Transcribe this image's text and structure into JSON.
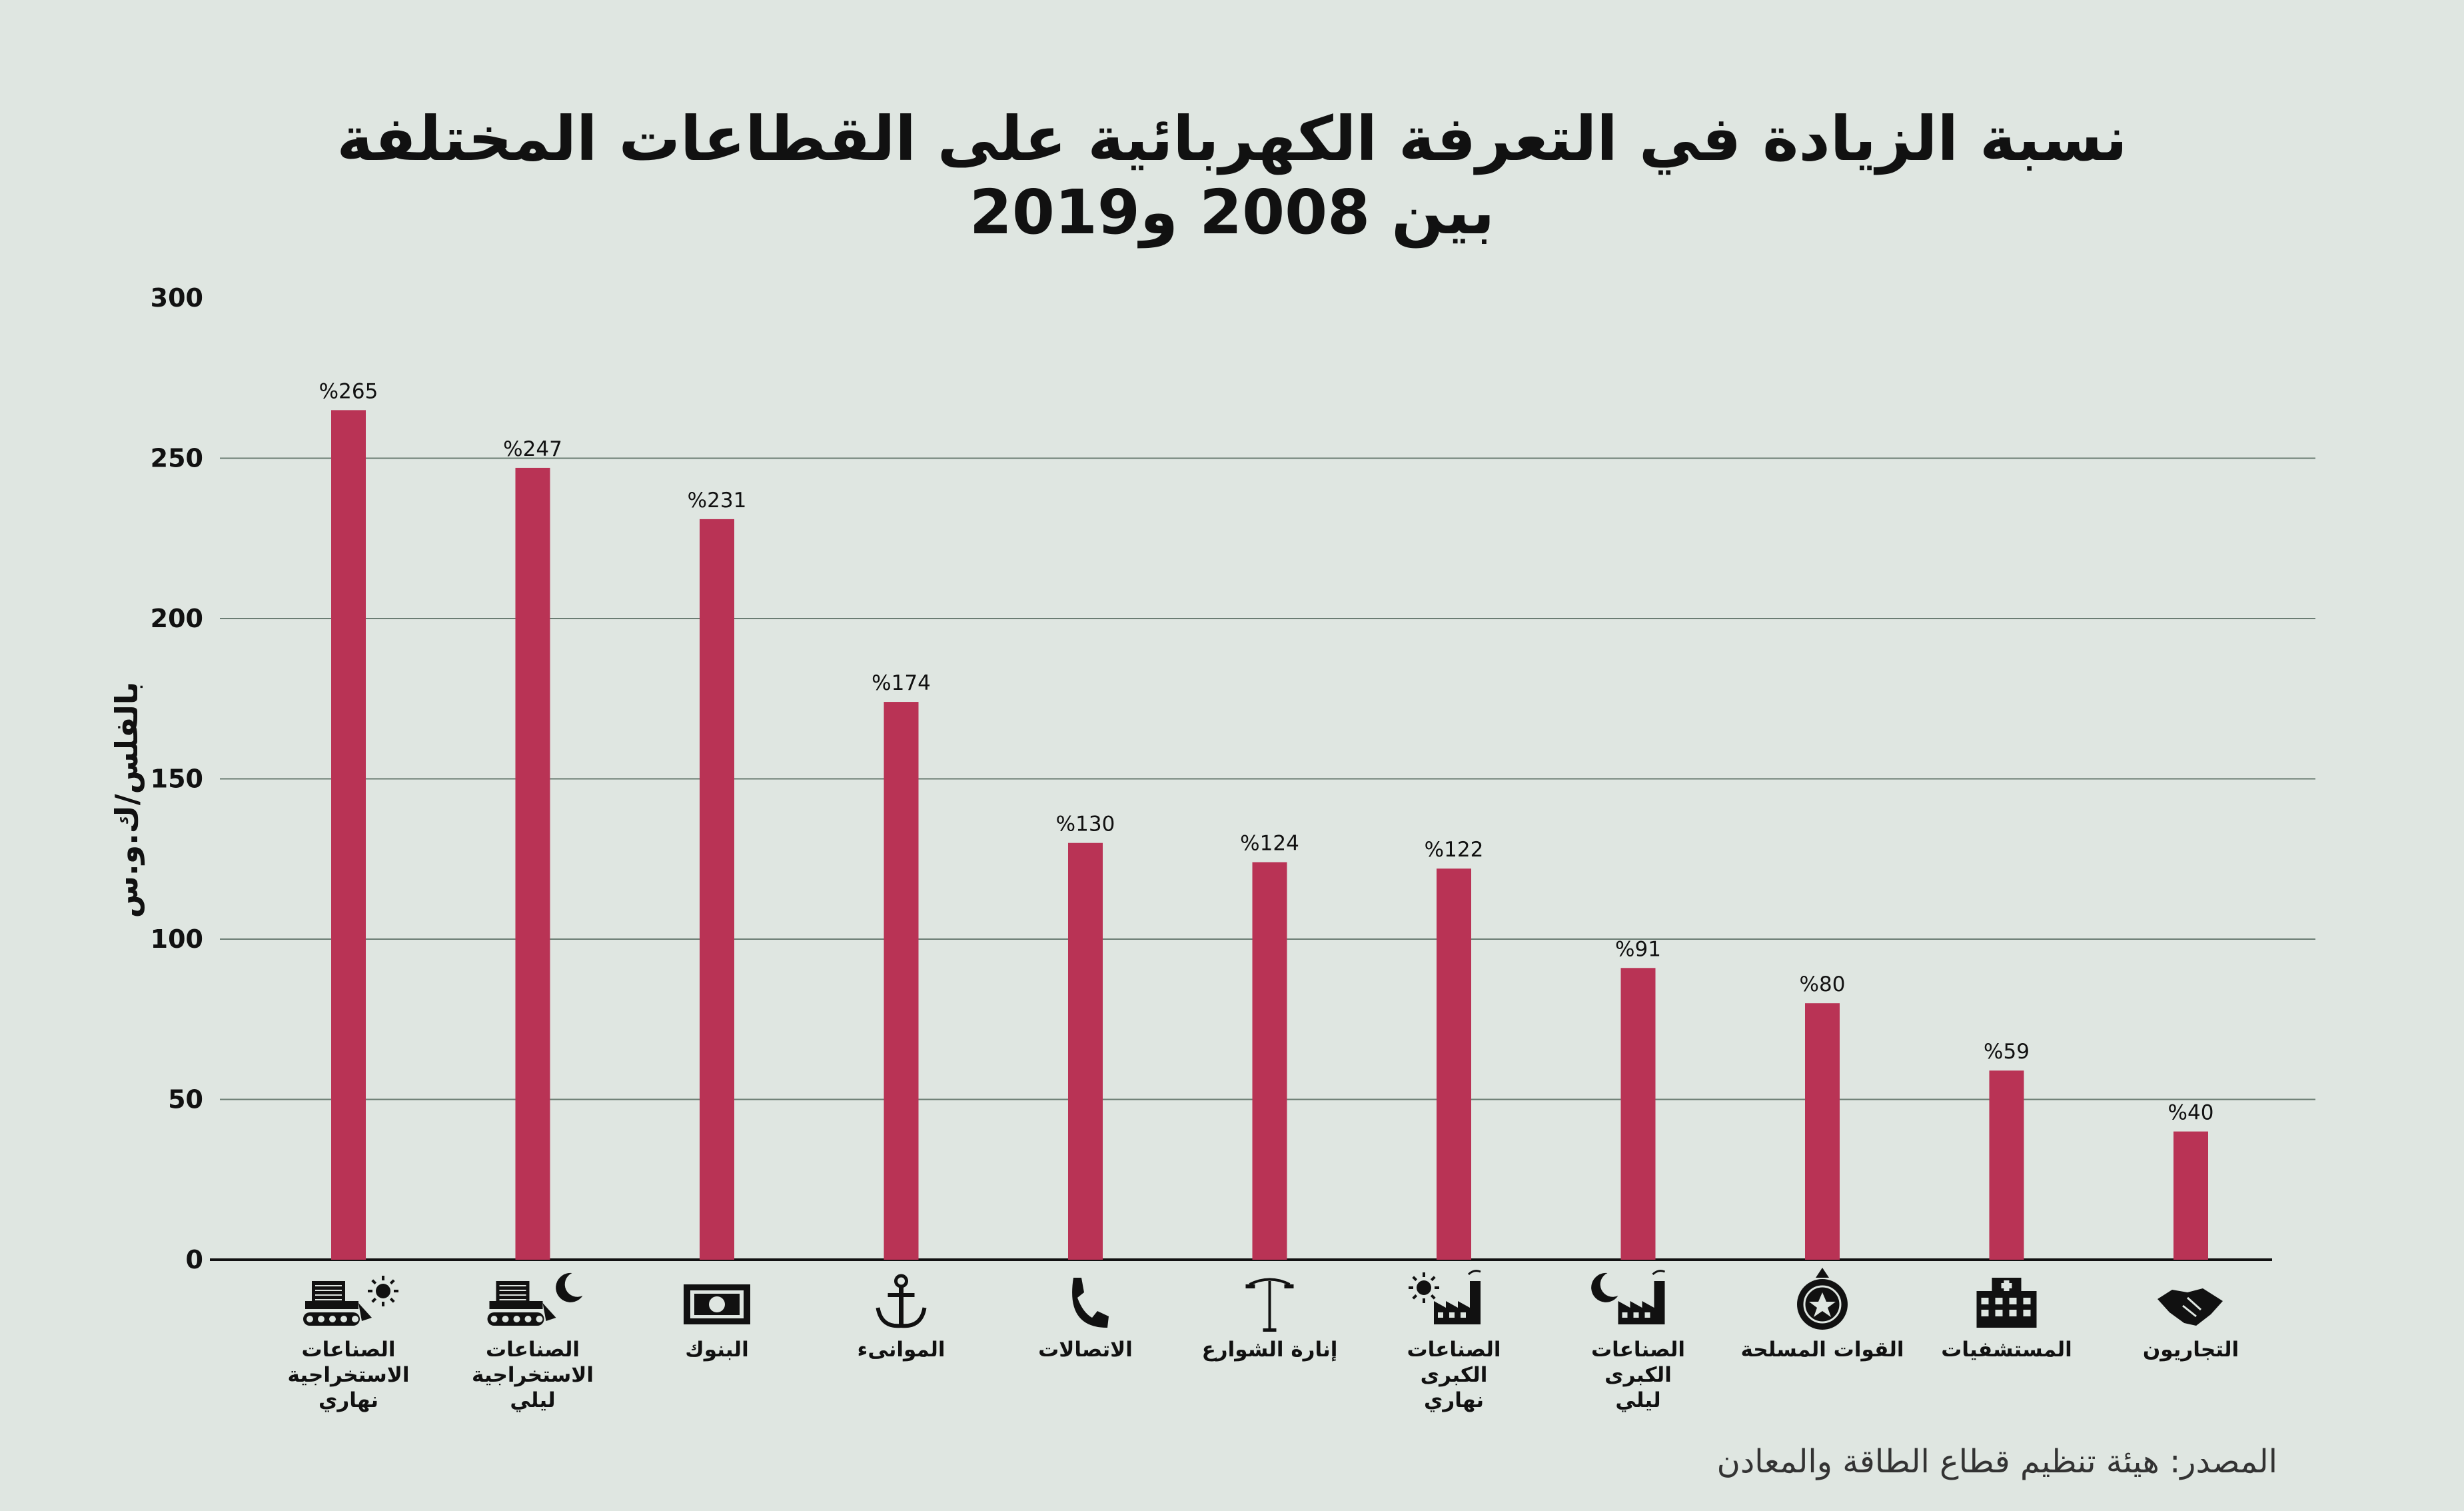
{
  "title_line1": "نسبة الزيادة في التعرفة الكهربائية على القطاعات المختلفة",
  "title_line2": "بين 2008 و2019",
  "source": "المصدر: هيئة تنظيم قطاع الطاقة والمعادن",
  "colors": {
    "bar": "#b93355",
    "background": "#dfe6e1",
    "grid": "#6b7d73"
  },
  "chart_data": {
    "type": "bar",
    "ylabel": "بالفلس/ك.و.س",
    "ylim": [
      0,
      300
    ],
    "yticks": [
      0,
      50,
      100,
      150,
      200,
      250,
      300
    ],
    "grid": true,
    "categories": [
      {
        "lines": [
          "الصناعات",
          "الاستخراجية",
          "نهاري"
        ],
        "icon": "mining-truck-sun-icon"
      },
      {
        "lines": [
          "الصناعات",
          "الاستخراجية",
          "ليلي"
        ],
        "icon": "mining-truck-moon-icon"
      },
      {
        "lines": [
          "البنوك"
        ],
        "icon": "banknote-icon"
      },
      {
        "lines": [
          "الموانىء"
        ],
        "icon": "anchor-icon"
      },
      {
        "lines": [
          "الاتصالات"
        ],
        "icon": "phone-icon"
      },
      {
        "lines": [
          "إنارة الشوارع"
        ],
        "icon": "street-lamp-icon"
      },
      {
        "lines": [
          "الصناعات",
          "الكبرى",
          "نهاري"
        ],
        "icon": "factory-sun-icon"
      },
      {
        "lines": [
          "الصناعات",
          "الكبرى",
          "ليلي"
        ],
        "icon": "factory-moon-icon"
      },
      {
        "lines": [
          "القوات المسلحة"
        ],
        "icon": "army-emblem-icon"
      },
      {
        "lines": [
          "المستشفيات"
        ],
        "icon": "hospital-icon"
      },
      {
        "lines": [
          "التجاريون"
        ],
        "icon": "handshake-icon"
      }
    ],
    "values": [
      265,
      247,
      231,
      174,
      130,
      124,
      122,
      91,
      80,
      59,
      40
    ],
    "value_labels": [
      "%265",
      "%247",
      "%231",
      "%174",
      "%130",
      "%124",
      "%122",
      "%91",
      "%80",
      "%59",
      "%40"
    ]
  }
}
